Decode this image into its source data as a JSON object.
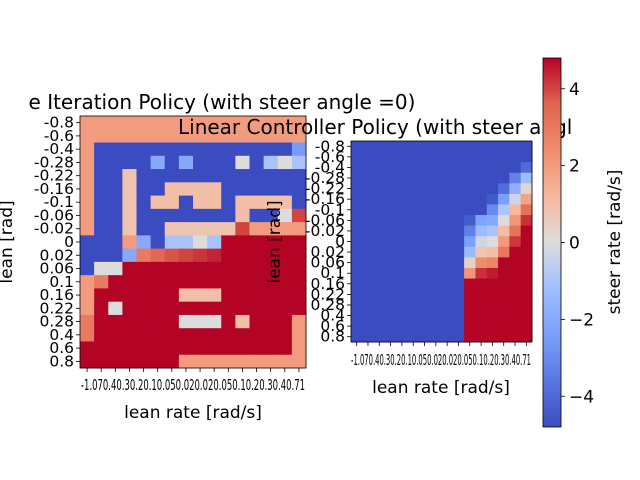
{
  "y_ticks": [
    "-0.8",
    "-0.6",
    "-0.4",
    "-0.28",
    "-0.22",
    "-0.16",
    "-0.1",
    "-0.06",
    "-0.02",
    "0",
    "0.02",
    "0.06",
    "0.1",
    "0.16",
    "0.22",
    "0.28",
    "0.4",
    "0.6",
    "0.8"
  ],
  "x_ticks": [
    "-1",
    "-0.7",
    "-0.4",
    "-0.3",
    "-0.2",
    "-0.1",
    "-0.05",
    "0",
    "0.02",
    "0.05",
    "0.1",
    "0.2",
    "0.3",
    "0.4",
    "0.7",
    "1"
  ],
  "x_ticks_display": "-1.070.40.30.20.10.050.020.020.050.10.20.30.40.71",
  "colorbar": {
    "label": "steer rate [rad/s]",
    "ticks": [
      "4",
      "2",
      "0",
      "−2",
      "−4"
    ],
    "tick_values": [
      4,
      2,
      0,
      -2,
      -4
    ],
    "vmin": -4.8,
    "vmax": 4.8,
    "colormap": "coolwarm"
  },
  "chart_data": [
    {
      "type": "heatmap",
      "title": "e Iteration Policy (with steer angle =0)",
      "xlabel": "lean rate [rad/s]",
      "ylabel": "lean [rad]",
      "rows": 19,
      "cols": 16,
      "values": [
        [
          2,
          2,
          2,
          2,
          2,
          2,
          2,
          2,
          2,
          2,
          2,
          2,
          2,
          2,
          2,
          2
        ],
        [
          2,
          2,
          2,
          2,
          2,
          2,
          2,
          2,
          2,
          2,
          2,
          2,
          2,
          2,
          2,
          2
        ],
        [
          2,
          -4.8,
          -4.8,
          -4.8,
          -4.8,
          -4.8,
          -4.8,
          -4.8,
          -4.8,
          -4.8,
          -4.8,
          -4.8,
          -4.8,
          -4.8,
          -4.8,
          -2.5
        ],
        [
          2,
          -4.8,
          -4.8,
          -4.8,
          -4.8,
          -2,
          -4.8,
          -2,
          -4.8,
          -4.8,
          -4.8,
          0,
          -4.8,
          -1,
          0,
          -1
        ],
        [
          2,
          -4.8,
          -4.8,
          0.8,
          -4.8,
          -4.8,
          -4.8,
          -4.8,
          -4.8,
          -4.8,
          -4.8,
          -4.8,
          -4.8,
          -4.8,
          -4.8,
          -4.8
        ],
        [
          2,
          -4.8,
          -4.8,
          0.8,
          -4.8,
          -4.8,
          1,
          1,
          1,
          1,
          -4.8,
          -4.8,
          -4.8,
          -4.8,
          -4.8,
          -4.8
        ],
        [
          2,
          -4.8,
          -4.8,
          0.8,
          -4.8,
          1,
          1,
          -4.8,
          1,
          1,
          -4.8,
          1,
          1,
          1,
          1,
          -4.8
        ],
        [
          2,
          -4.8,
          -4.8,
          0.8,
          -4.8,
          -4.8,
          -4.8,
          -4.8,
          -4.8,
          -4.8,
          -4.8,
          1,
          -4.8,
          -4.8,
          0,
          4
        ],
        [
          2,
          -4.8,
          -4.8,
          0.8,
          -4.8,
          -4.8,
          0.8,
          0.8,
          0.8,
          0.8,
          0.8,
          4,
          2,
          2,
          2,
          2
        ],
        [
          -4.8,
          -4.8,
          -4.8,
          2,
          -2,
          -4.8,
          -1,
          -1,
          0,
          -1,
          4.8,
          4.8,
          4.8,
          4.8,
          4.8,
          4.8
        ],
        [
          -4.8,
          -4.8,
          -4.8,
          -2,
          3,
          3.5,
          3.8,
          4,
          4.2,
          4.4,
          4.8,
          4.8,
          4.8,
          4.8,
          4.8,
          4.8
        ],
        [
          -4.8,
          0,
          0,
          4.8,
          4.8,
          4.8,
          4.8,
          4.8,
          4.8,
          4.8,
          4.8,
          4.8,
          4.8,
          4.8,
          4.8,
          4.8
        ],
        [
          2,
          3,
          4.8,
          4.8,
          4.8,
          4.8,
          4.8,
          4.8,
          4.8,
          4.8,
          4.8,
          4.8,
          4.8,
          4.8,
          4.8,
          4.8
        ],
        [
          2,
          4.8,
          4.8,
          4.8,
          4.8,
          4.8,
          4.8,
          1,
          1,
          1,
          4.8,
          4.8,
          4.8,
          4.8,
          4.8,
          4.8
        ],
        [
          2,
          4.8,
          0,
          4.8,
          4.8,
          4.8,
          4.8,
          4.8,
          4.8,
          4.8,
          4.8,
          4.8,
          4.8,
          4.8,
          4.8,
          4.8
        ],
        [
          3,
          4.8,
          4.8,
          4.8,
          4.8,
          4.8,
          4.8,
          0,
          0,
          0,
          4.8,
          1,
          4.8,
          4.8,
          4.8,
          2
        ],
        [
          3,
          4.8,
          4.8,
          4.8,
          4.8,
          4.8,
          4.8,
          4.8,
          4.8,
          4.8,
          4.8,
          4.8,
          4.8,
          4.8,
          4.8,
          2
        ],
        [
          4.8,
          4.8,
          4.8,
          4.8,
          4.8,
          4.8,
          4.8,
          4.8,
          4.8,
          4.8,
          4.8,
          4.8,
          4.8,
          4.8,
          4.8,
          2
        ],
        [
          4.8,
          4.8,
          4.8,
          4.8,
          4.8,
          4.8,
          4.8,
          2,
          2,
          2,
          2,
          2,
          2,
          2,
          2,
          2
        ]
      ]
    },
    {
      "type": "heatmap",
      "title": "Linear Controller Policy (with steer angl",
      "xlabel": "lean rate [rad/s]",
      "ylabel": "lean [rad]",
      "rows": 19,
      "cols": 16,
      "values": [
        [
          -4.8,
          -4.8,
          -4.8,
          -4.8,
          -4.8,
          -4.8,
          -4.8,
          -4.8,
          -4.8,
          -4.8,
          -4.8,
          -4.8,
          -4.8,
          -4.8,
          -4.8,
          -4.8
        ],
        [
          -4.8,
          -4.8,
          -4.8,
          -4.8,
          -4.8,
          -4.8,
          -4.8,
          -4.8,
          -4.8,
          -4.8,
          -4.8,
          -4.8,
          -4.8,
          -4.8,
          -4.8,
          -4.8
        ],
        [
          -4.8,
          -4.8,
          -4.8,
          -4.8,
          -4.8,
          -4.8,
          -4.8,
          -4.8,
          -4.8,
          -4.8,
          -4.8,
          -4.8,
          -4.8,
          -4.8,
          -4.8,
          -3.94
        ],
        [
          -4.8,
          -4.8,
          -4.8,
          -4.8,
          -4.8,
          -4.8,
          -4.8,
          -4.8,
          -4.8,
          -4.8,
          -4.8,
          -4.8,
          -4.8,
          -4.8,
          -3.32,
          -1.24
        ],
        [
          -4.8,
          -4.8,
          -4.8,
          -4.8,
          -4.8,
          -4.8,
          -4.8,
          -4.8,
          -4.8,
          -4.8,
          -4.8,
          -4.8,
          -4.8,
          -3.88,
          -1.8,
          0.28
        ],
        [
          -4.8,
          -4.8,
          -4.8,
          -4.8,
          -4.8,
          -4.8,
          -4.8,
          -4.8,
          -4.8,
          -4.8,
          -4.8,
          -4.8,
          -4.44,
          -2.36,
          -0.28,
          1.8
        ],
        [
          -4.8,
          -4.8,
          -4.8,
          -4.8,
          -4.8,
          -4.8,
          -4.8,
          -4.8,
          -4.8,
          -4.8,
          -4.8,
          -4.8,
          -3.0,
          -0.92,
          1.16,
          3.24
        ],
        [
          -4.8,
          -4.8,
          -4.8,
          -4.8,
          -4.8,
          -4.8,
          -4.8,
          -4.8,
          -4.8,
          -4.8,
          -4.36,
          -2.28,
          -2.0,
          0.08,
          2.16,
          4.24
        ],
        [
          -4.8,
          -4.8,
          -4.8,
          -4.8,
          -4.8,
          -4.8,
          -4.8,
          -4.8,
          -4.8,
          -4.8,
          -3.36,
          -1.28,
          -1.0,
          1.08,
          3.16,
          4.8
        ],
        [
          -4.8,
          -4.8,
          -4.8,
          -4.8,
          -4.8,
          -4.8,
          -4.8,
          -4.8,
          -4.8,
          -4.8,
          -2.36,
          -0.28,
          0.0,
          2.08,
          4.16,
          4.8
        ],
        [
          -4.8,
          -4.8,
          -4.8,
          -4.8,
          -4.8,
          -4.8,
          -4.8,
          -4.8,
          -4.8,
          -4.8,
          -1.36,
          0.72,
          1.0,
          3.08,
          4.8,
          4.8
        ],
        [
          -4.8,
          -4.8,
          -4.8,
          -4.8,
          -4.8,
          -4.8,
          -4.8,
          -4.8,
          -4.8,
          -4.8,
          0.36,
          2.44,
          2.72,
          4.8,
          4.8,
          4.8
        ],
        [
          -4.8,
          -4.8,
          -4.8,
          -4.8,
          -4.8,
          -4.8,
          -4.8,
          -4.8,
          -4.8,
          -4.8,
          2.16,
          4.24,
          4.52,
          4.8,
          4.8,
          4.8
        ],
        [
          -4.8,
          -4.8,
          -4.8,
          -4.8,
          -4.8,
          -4.8,
          -4.8,
          -4.8,
          -4.8,
          -4.8,
          4.8,
          4.8,
          4.8,
          4.8,
          4.8,
          4.8
        ],
        [
          -4.8,
          -4.8,
          -4.8,
          -4.8,
          -4.8,
          -4.8,
          -4.8,
          -4.8,
          -4.8,
          -4.8,
          4.8,
          4.8,
          4.8,
          4.8,
          4.8,
          4.8
        ],
        [
          -4.8,
          -4.8,
          -4.8,
          -4.8,
          -4.8,
          -4.8,
          -4.8,
          -4.8,
          -4.8,
          -4.8,
          4.8,
          4.8,
          4.8,
          4.8,
          4.8,
          4.8
        ],
        [
          -4.8,
          -4.8,
          -4.8,
          -4.8,
          -4.8,
          -4.8,
          -4.8,
          -4.8,
          -4.8,
          -4.8,
          4.8,
          4.8,
          4.8,
          4.8,
          4.8,
          4.8
        ],
        [
          -4.8,
          -4.8,
          -4.8,
          -4.8,
          -4.8,
          -4.8,
          -4.8,
          -4.8,
          -4.8,
          -4.8,
          4.8,
          4.8,
          4.8,
          4.8,
          4.8,
          4.8
        ],
        [
          -4.8,
          -4.8,
          -4.8,
          -4.8,
          -4.8,
          -4.8,
          -4.8,
          -4.8,
          -4.8,
          -4.8,
          4.8,
          4.8,
          4.8,
          4.8,
          4.8,
          4.8
        ]
      ]
    }
  ]
}
